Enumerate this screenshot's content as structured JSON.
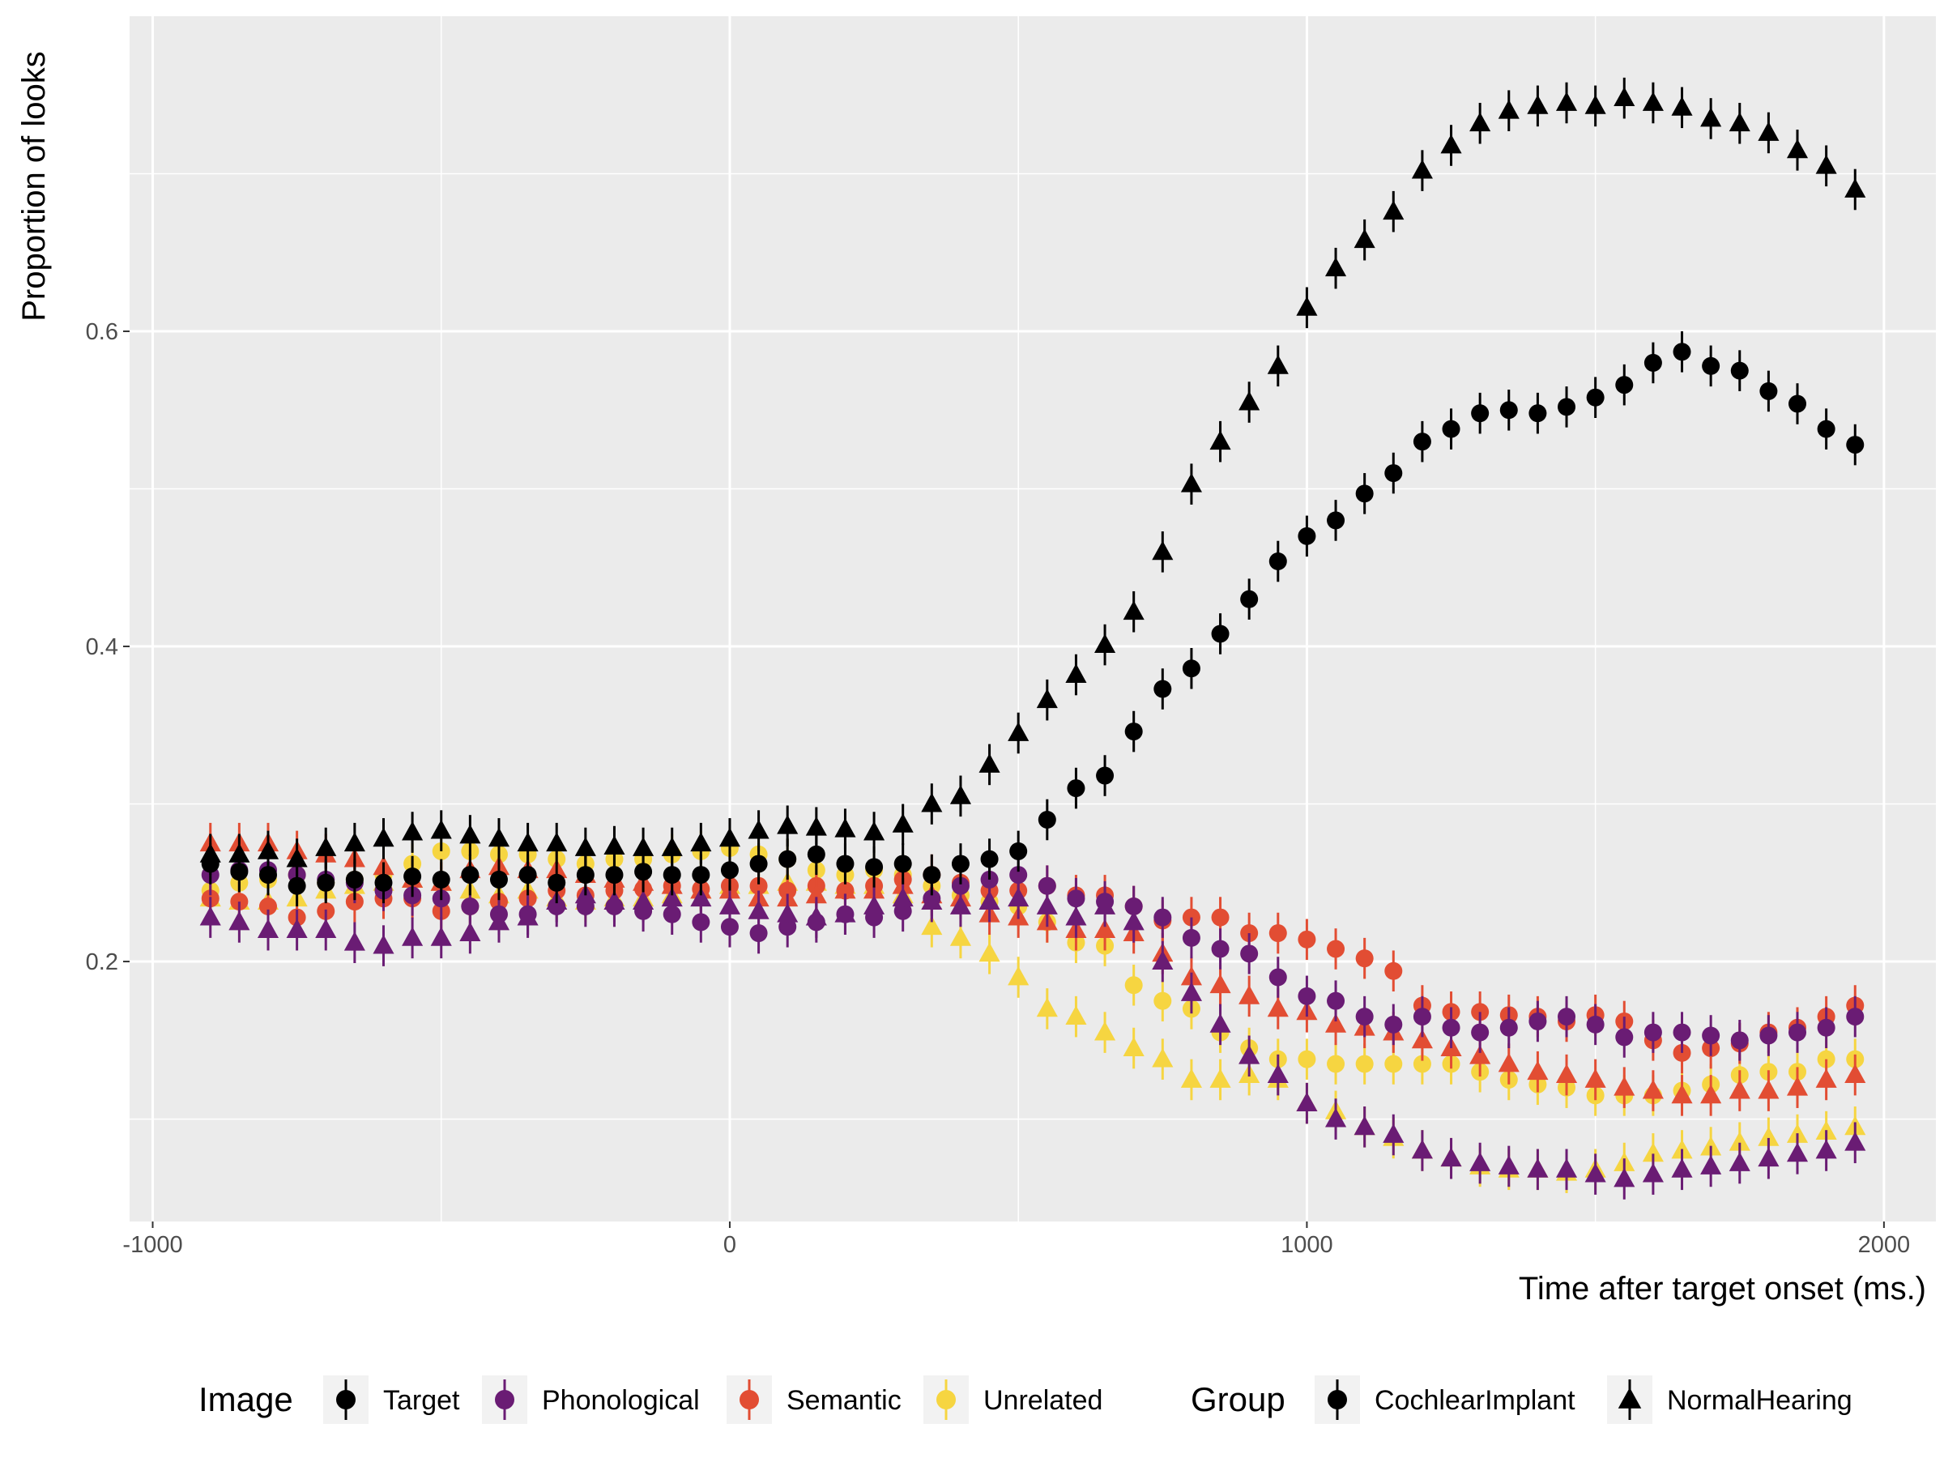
{
  "chart_data": {
    "type": "scatter",
    "title": "",
    "xlabel": "Time after target onset (ms.)",
    "ylabel": "Proportion of looks",
    "xlim": [
      -1040,
      2090
    ],
    "ylim": [
      0.035,
      0.8
    ],
    "x_ticks": [
      -1000,
      0,
      1000,
      2000
    ],
    "x_tick_labels": [
      "-1000",
      "0",
      "1000",
      "2000"
    ],
    "y_ticks": [
      0.2,
      0.4,
      0.6
    ],
    "y_tick_labels": [
      "0.2",
      "0.4",
      "0.6"
    ],
    "grid": true,
    "background": "#ebebeb",
    "legend_position": "bottom",
    "colors": {
      "Target": "#000000",
      "Phonological": "#6a1c74",
      "Semantic": "#e24d33",
      "Unrelated": "#f6d541"
    },
    "legend": {
      "image_title": "Image",
      "group_title": "Group",
      "image_items": [
        "Target",
        "Phonological",
        "Semantic",
        "Unrelated"
      ],
      "group_items": [
        "CochlearImplant",
        "NormalHearing"
      ],
      "group_shapes": [
        "circle",
        "triangle"
      ]
    },
    "x": [
      -900,
      -850,
      -800,
      -750,
      -700,
      -650,
      -600,
      -550,
      -500,
      -450,
      -400,
      -350,
      -300,
      -250,
      -200,
      -150,
      -100,
      -50,
      0,
      50,
      100,
      150,
      200,
      250,
      300,
      350,
      400,
      450,
      500,
      550,
      600,
      650,
      700,
      750,
      800,
      850,
      900,
      950,
      1000,
      1050,
      1100,
      1150,
      1200,
      1250,
      1300,
      1350,
      1400,
      1450,
      1500,
      1550,
      1600,
      1650,
      1700,
      1750,
      1800,
      1850,
      1900,
      1950
    ],
    "error_halfwidth": 0.013,
    "series": [
      {
        "image": "Target",
        "group": "CochlearImplant",
        "values": [
          0.262,
          0.257,
          0.255,
          0.248,
          0.25,
          0.252,
          0.25,
          0.254,
          0.252,
          0.255,
          0.252,
          0.255,
          0.25,
          0.255,
          0.255,
          0.257,
          0.255,
          0.255,
          0.258,
          0.262,
          0.265,
          0.268,
          0.262,
          0.26,
          0.262,
          0.255,
          0.262,
          0.265,
          0.27,
          0.29,
          0.31,
          0.318,
          0.346,
          0.373,
          0.386,
          0.408,
          0.43,
          0.454,
          0.47,
          0.48,
          0.497,
          0.51,
          0.53,
          0.538,
          0.548,
          0.55,
          0.548,
          0.552,
          0.558,
          0.566,
          0.58,
          0.587,
          0.578,
          0.575,
          0.562,
          0.554,
          0.538,
          0.528
        ]
      },
      {
        "image": "Target",
        "group": "NormalHearing",
        "values": [
          0.268,
          0.268,
          0.27,
          0.265,
          0.272,
          0.275,
          0.278,
          0.282,
          0.283,
          0.28,
          0.278,
          0.275,
          0.275,
          0.272,
          0.273,
          0.272,
          0.272,
          0.275,
          0.278,
          0.283,
          0.286,
          0.285,
          0.284,
          0.282,
          0.287,
          0.3,
          0.305,
          0.325,
          0.345,
          0.366,
          0.382,
          0.401,
          0.422,
          0.46,
          0.503,
          0.53,
          0.555,
          0.578,
          0.615,
          0.64,
          0.658,
          0.676,
          0.702,
          0.718,
          0.732,
          0.74,
          0.743,
          0.745,
          0.743,
          0.748,
          0.745,
          0.742,
          0.735,
          0.732,
          0.726,
          0.715,
          0.705,
          0.69
        ]
      },
      {
        "image": "Phonological",
        "group": "CochlearImplant",
        "values": [
          0.255,
          0.258,
          0.258,
          0.255,
          0.252,
          0.25,
          0.245,
          0.242,
          0.24,
          0.235,
          0.23,
          0.23,
          0.235,
          0.235,
          0.235,
          0.232,
          0.23,
          0.225,
          0.222,
          0.218,
          0.222,
          0.225,
          0.23,
          0.228,
          0.232,
          0.24,
          0.248,
          0.252,
          0.255,
          0.248,
          0.24,
          0.238,
          0.235,
          0.228,
          0.215,
          0.208,
          0.205,
          0.19,
          0.178,
          0.175,
          0.165,
          0.16,
          0.165,
          0.158,
          0.155,
          0.158,
          0.162,
          0.165,
          0.16,
          0.152,
          0.155,
          0.155,
          0.153,
          0.15,
          0.153,
          0.155,
          0.158,
          0.165
        ]
      },
      {
        "image": "Phonological",
        "group": "NormalHearing",
        "values": [
          0.228,
          0.225,
          0.22,
          0.22,
          0.22,
          0.212,
          0.21,
          0.215,
          0.215,
          0.218,
          0.225,
          0.228,
          0.238,
          0.242,
          0.238,
          0.238,
          0.24,
          0.24,
          0.235,
          0.232,
          0.23,
          0.228,
          0.23,
          0.235,
          0.24,
          0.238,
          0.235,
          0.238,
          0.24,
          0.235,
          0.228,
          0.235,
          0.225,
          0.2,
          0.18,
          0.16,
          0.14,
          0.128,
          0.11,
          0.1,
          0.095,
          0.09,
          0.08,
          0.075,
          0.072,
          0.07,
          0.068,
          0.068,
          0.065,
          0.062,
          0.065,
          0.068,
          0.07,
          0.072,
          0.075,
          0.078,
          0.08,
          0.085
        ]
      },
      {
        "image": "Semantic",
        "group": "CochlearImplant",
        "values": [
          0.24,
          0.238,
          0.235,
          0.228,
          0.232,
          0.238,
          0.24,
          0.24,
          0.232,
          0.235,
          0.238,
          0.24,
          0.245,
          0.242,
          0.245,
          0.246,
          0.248,
          0.246,
          0.248,
          0.248,
          0.245,
          0.248,
          0.245,
          0.248,
          0.252,
          0.255,
          0.25,
          0.245,
          0.245,
          0.248,
          0.242,
          0.242,
          0.235,
          0.226,
          0.228,
          0.228,
          0.218,
          0.218,
          0.214,
          0.208,
          0.202,
          0.194,
          0.172,
          0.168,
          0.168,
          0.166,
          0.165,
          0.162,
          0.166,
          0.162,
          0.15,
          0.142,
          0.145,
          0.148,
          0.155,
          0.158,
          0.165,
          0.172
        ]
      },
      {
        "image": "Semantic",
        "group": "NormalHearing",
        "values": [
          0.275,
          0.275,
          0.275,
          0.27,
          0.268,
          0.265,
          0.26,
          0.252,
          0.25,
          0.258,
          0.26,
          0.258,
          0.258,
          0.255,
          0.252,
          0.25,
          0.248,
          0.245,
          0.245,
          0.24,
          0.24,
          0.242,
          0.245,
          0.245,
          0.248,
          0.242,
          0.24,
          0.23,
          0.228,
          0.225,
          0.22,
          0.22,
          0.218,
          0.205,
          0.19,
          0.185,
          0.178,
          0.17,
          0.168,
          0.16,
          0.158,
          0.155,
          0.15,
          0.145,
          0.14,
          0.135,
          0.13,
          0.128,
          0.125,
          0.12,
          0.118,
          0.115,
          0.115,
          0.118,
          0.118,
          0.12,
          0.125,
          0.128
        ]
      },
      {
        "image": "Unrelated",
        "group": "CochlearImplant",
        "values": [
          0.245,
          0.25,
          0.252,
          0.255,
          0.25,
          0.252,
          0.255,
          0.262,
          0.27,
          0.27,
          0.268,
          0.268,
          0.265,
          0.262,
          0.265,
          0.265,
          0.268,
          0.27,
          0.272,
          0.268,
          0.265,
          0.258,
          0.255,
          0.258,
          0.255,
          0.248,
          0.242,
          0.238,
          0.235,
          0.225,
          0.212,
          0.21,
          0.185,
          0.175,
          0.17,
          0.155,
          0.145,
          0.138,
          0.138,
          0.135,
          0.135,
          0.135,
          0.135,
          0.135,
          0.13,
          0.125,
          0.122,
          0.12,
          0.115,
          0.115,
          0.115,
          0.118,
          0.122,
          0.128,
          0.13,
          0.13,
          0.138,
          0.138
        ]
      },
      {
        "image": "Unrelated",
        "group": "NormalHearing",
        "values": [
          0.24,
          0.238,
          0.238,
          0.24,
          0.245,
          0.248,
          0.25,
          0.252,
          0.25,
          0.245,
          0.242,
          0.245,
          0.24,
          0.238,
          0.24,
          0.24,
          0.242,
          0.245,
          0.248,
          0.248,
          0.25,
          0.25,
          0.248,
          0.248,
          0.242,
          0.222,
          0.215,
          0.205,
          0.19,
          0.17,
          0.165,
          0.155,
          0.145,
          0.138,
          0.125,
          0.125,
          0.128,
          0.125,
          0.11,
          0.105,
          0.095,
          0.088,
          0.08,
          0.075,
          0.07,
          0.068,
          0.068,
          0.066,
          0.068,
          0.072,
          0.078,
          0.08,
          0.082,
          0.085,
          0.088,
          0.09,
          0.092,
          0.095
        ]
      }
    ]
  }
}
